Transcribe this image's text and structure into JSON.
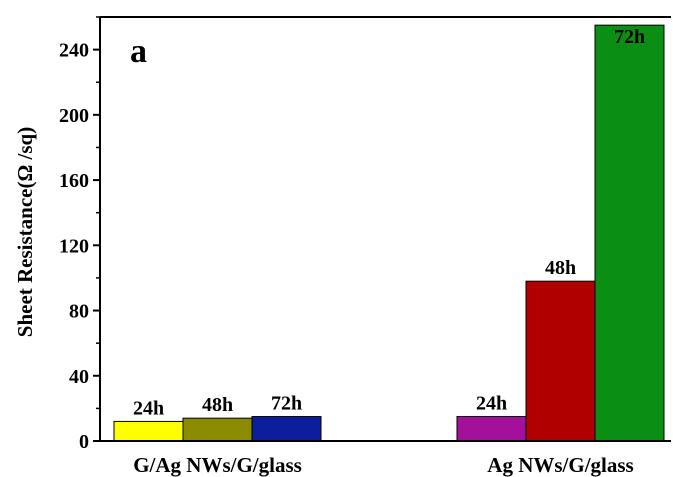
{
  "chart_data": {
    "type": "bar",
    "panel_label": "a",
    "title": "",
    "xlabel": "",
    "ylabel": "Sheet Resistance(Ω /sq)",
    "ylim": [
      0,
      260
    ],
    "yticks": [
      0,
      40,
      80,
      120,
      160,
      200,
      240
    ],
    "grid": false,
    "categories": [
      "G/Ag NWs/G/glass",
      "Ag NWs/G/glass"
    ],
    "groups": [
      {
        "category": "G/Ag NWs/G/glass",
        "bars": [
          {
            "label": "24h",
            "value": 12,
            "color": "#ffff00"
          },
          {
            "label": "48h",
            "value": 14,
            "color": "#8b8b00"
          },
          {
            "label": "72h",
            "value": 15,
            "color": "#0c1e9c"
          }
        ]
      },
      {
        "category": "Ag NWs/G/glass",
        "bars": [
          {
            "label": "24h",
            "value": 15,
            "color": "#a3109c"
          },
          {
            "label": "48h",
            "value": 98,
            "color": "#b00000"
          },
          {
            "label": "72h",
            "value": 255,
            "color": "#0a8f14"
          }
        ]
      }
    ]
  }
}
